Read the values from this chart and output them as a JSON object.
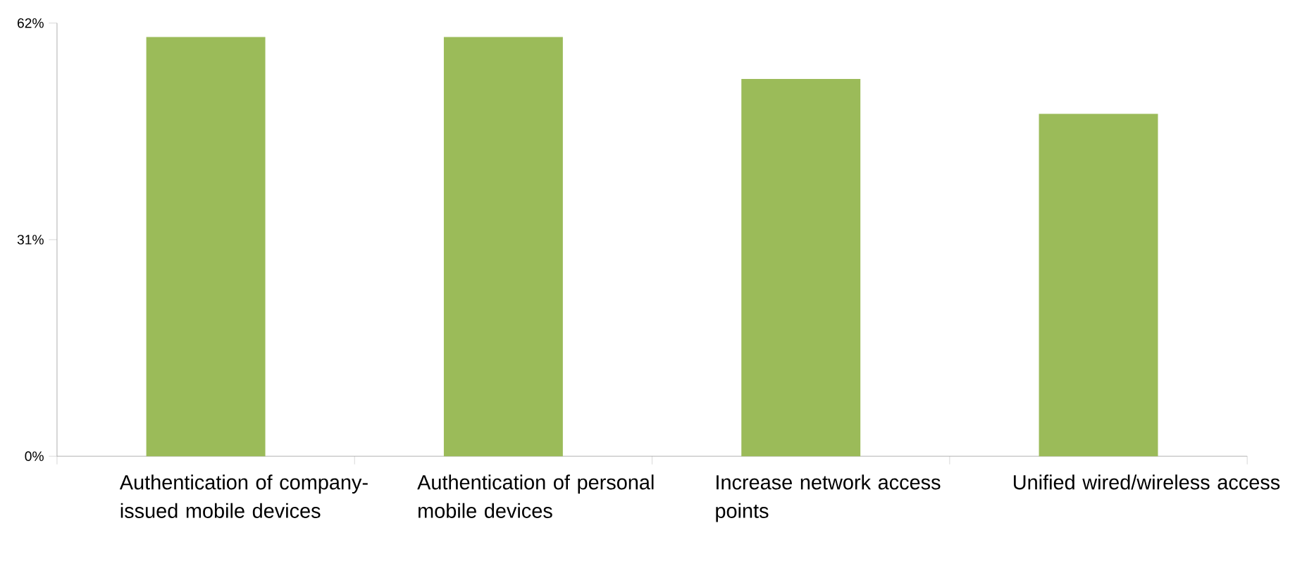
{
  "chart_data": {
    "type": "bar",
    "categories": [
      "Authentication of company-issued mobile devices",
      "Authentication of personal mobile devices",
      "Increase network access points",
      "Unified wired/wireless access"
    ],
    "values": [
      60,
      60,
      54,
      49
    ],
    "color": "#9bbb59",
    "ylim": [
      0,
      62
    ],
    "yticks": [
      {
        "value": 0,
        "label": "0%"
      },
      {
        "value": 31,
        "label": "31%"
      },
      {
        "value": 62,
        "label": "62%"
      }
    ]
  }
}
